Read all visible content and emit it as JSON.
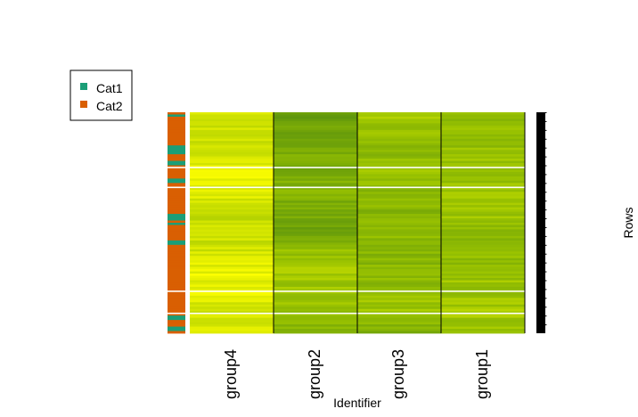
{
  "chart_data": {
    "type": "heatmap",
    "title": "",
    "xlabel": "Identifier",
    "ylabel": "Rows",
    "columns": [
      "group4",
      "group2",
      "group3",
      "group1"
    ],
    "row_count": 100,
    "row_breaks_after": [
      24,
      33,
      80,
      90
    ],
    "column_breaks_after": [
      1,
      2,
      3
    ],
    "value_range": [
      0,
      1
    ],
    "palette_low": "#4f8a10",
    "palette_mid": "#9cc400",
    "palette_high": "#ffff00",
    "legend": {
      "position": "top-left",
      "items": [
        {
          "label": "Cat1",
          "color": "#1b9e77"
        },
        {
          "label": "Cat2",
          "color": "#d95f02"
        }
      ]
    },
    "category_annotation": {
      "colors": {
        "Cat1": "#1b9e77",
        "Cat2": "#d95f02"
      },
      "cat1_rows": [
        1,
        15,
        16,
        17,
        18,
        22,
        23,
        30,
        31,
        46,
        47,
        48,
        50,
        58,
        59,
        92,
        93,
        97,
        98
      ]
    },
    "column_profiles": {
      "group4": [
        0.75,
        0.72,
        0.8,
        0.88,
        0.85,
        0.7,
        0.74,
        0.78,
        0.9,
        0.86,
        0.74,
        0.8
      ],
      "group2": [
        0.18,
        0.22,
        0.3,
        0.25,
        0.35,
        0.28,
        0.15,
        0.48,
        0.55,
        0.5,
        0.42,
        0.38
      ],
      "group3": [
        0.62,
        0.45,
        0.42,
        0.55,
        0.4,
        0.38,
        0.42,
        0.36,
        0.4,
        0.45,
        0.52,
        0.3
      ],
      "group1": [
        0.45,
        0.42,
        0.48,
        0.46,
        0.52,
        0.5,
        0.44,
        0.42,
        0.48,
        0.5,
        0.55,
        0.46
      ]
    }
  }
}
